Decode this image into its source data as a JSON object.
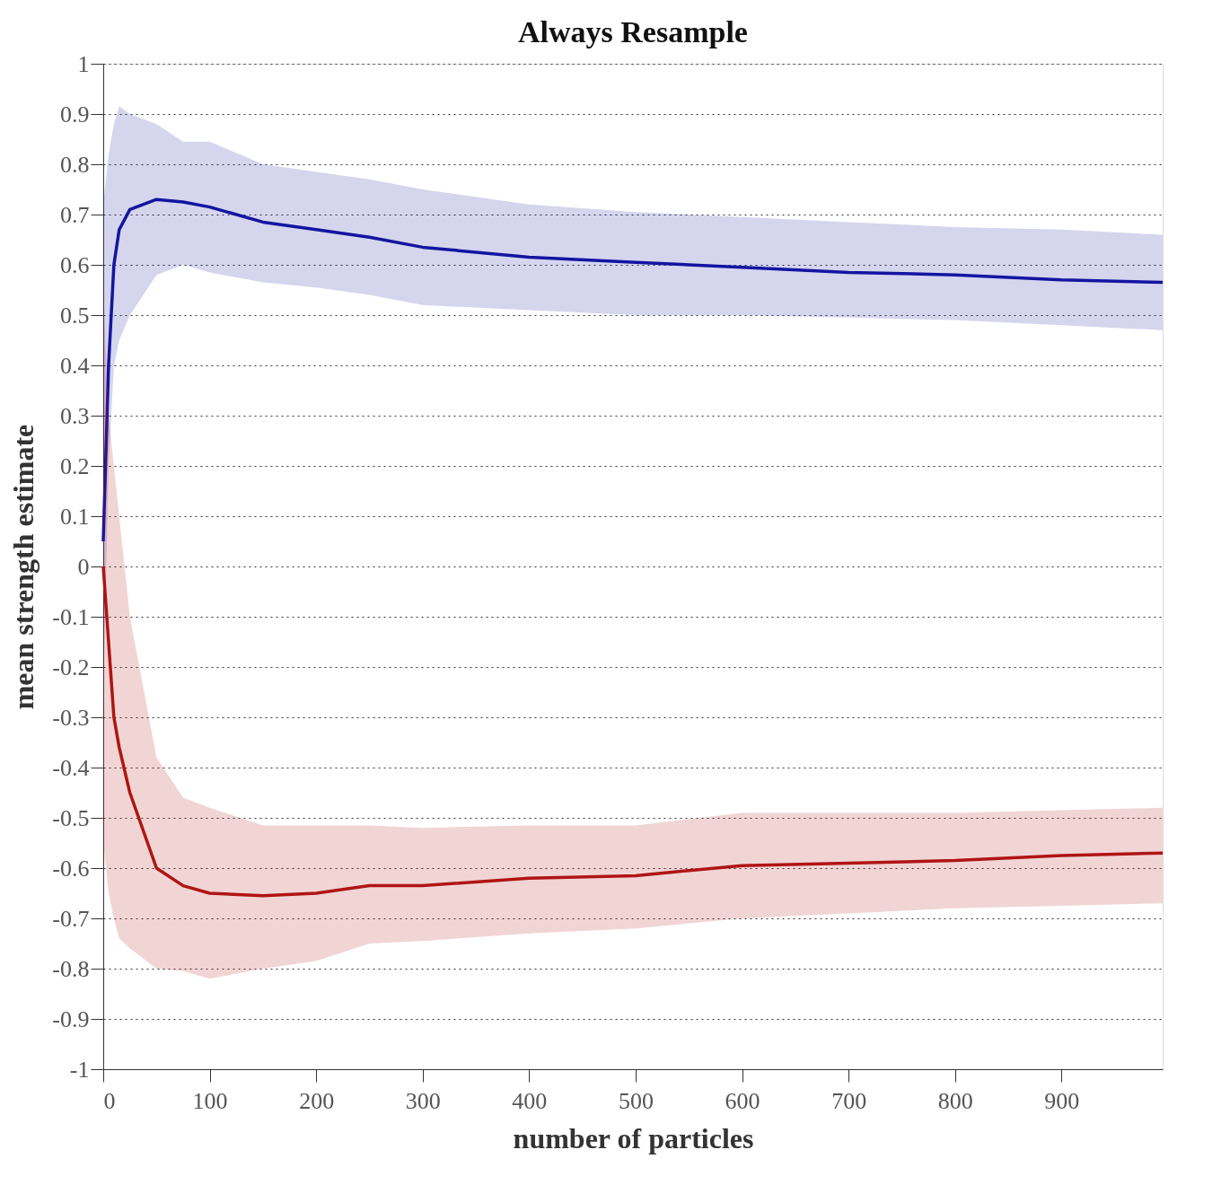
{
  "chart_data": {
    "type": "line",
    "title": "Always Resample",
    "xlabel": "number of particles",
    "ylabel": "mean strength estimate",
    "xlim": [
      0,
      995
    ],
    "xticks": [
      0,
      100,
      200,
      300,
      400,
      500,
      600,
      700,
      800,
      900
    ],
    "ylim": [
      -1,
      1
    ],
    "yticks": [
      -1,
      -0.9,
      -0.8,
      -0.7,
      -0.6,
      -0.5,
      -0.4,
      -0.3,
      -0.2,
      -0.1,
      0,
      0.1,
      0.2,
      0.3,
      0.4,
      0.5,
      0.6,
      0.7,
      0.8,
      0.9,
      1
    ],
    "grid": "y",
    "marker": "none",
    "line_style": "solid",
    "series": [
      {
        "color": "#1414a0",
        "x": [
          0,
          5,
          10,
          15,
          25,
          50,
          75,
          100,
          150,
          200,
          250,
          300,
          400,
          500,
          600,
          700,
          800,
          900,
          995
        ],
        "values": [
          0.05,
          0.4,
          0.6,
          0.67,
          0.71,
          0.73,
          0.725,
          0.715,
          0.685,
          0.67,
          0.655,
          0.635,
          0.615,
          0.605,
          0.595,
          0.585,
          0.58,
          0.57,
          0.565
        ],
        "upper": [
          0.72,
          0.82,
          0.88,
          0.915,
          0.9,
          0.88,
          0.845,
          0.845,
          0.8,
          0.785,
          0.77,
          0.75,
          0.72,
          0.705,
          0.695,
          0.685,
          0.675,
          0.67,
          0.66
        ],
        "lower": [
          -0.25,
          0.2,
          0.4,
          0.45,
          0.5,
          0.58,
          0.6,
          0.585,
          0.565,
          0.555,
          0.54,
          0.52,
          0.51,
          0.5,
          0.5,
          0.495,
          0.49,
          0.48,
          0.47
        ]
      },
      {
        "color": "#b01414",
        "x": [
          0,
          5,
          10,
          15,
          25,
          50,
          75,
          100,
          150,
          200,
          250,
          300,
          400,
          500,
          600,
          700,
          800,
          900,
          995
        ],
        "values": [
          0.0,
          -0.15,
          -0.3,
          -0.36,
          -0.45,
          -0.6,
          -0.635,
          -0.65,
          -0.655,
          -0.65,
          -0.635,
          -0.635,
          -0.62,
          -0.615,
          -0.595,
          -0.59,
          -0.585,
          -0.575,
          -0.57
        ],
        "upper": [
          0.55,
          0.3,
          0.2,
          0.1,
          -0.1,
          -0.38,
          -0.46,
          -0.48,
          -0.515,
          -0.515,
          -0.515,
          -0.52,
          -0.515,
          -0.515,
          -0.49,
          -0.49,
          -0.49,
          -0.485,
          -0.48
        ],
        "lower": [
          -0.55,
          -0.65,
          -0.7,
          -0.74,
          -0.76,
          -0.8,
          -0.805,
          -0.82,
          -0.8,
          -0.785,
          -0.75,
          -0.745,
          -0.73,
          -0.72,
          -0.7,
          -0.69,
          -0.68,
          -0.675,
          -0.67
        ]
      }
    ]
  }
}
